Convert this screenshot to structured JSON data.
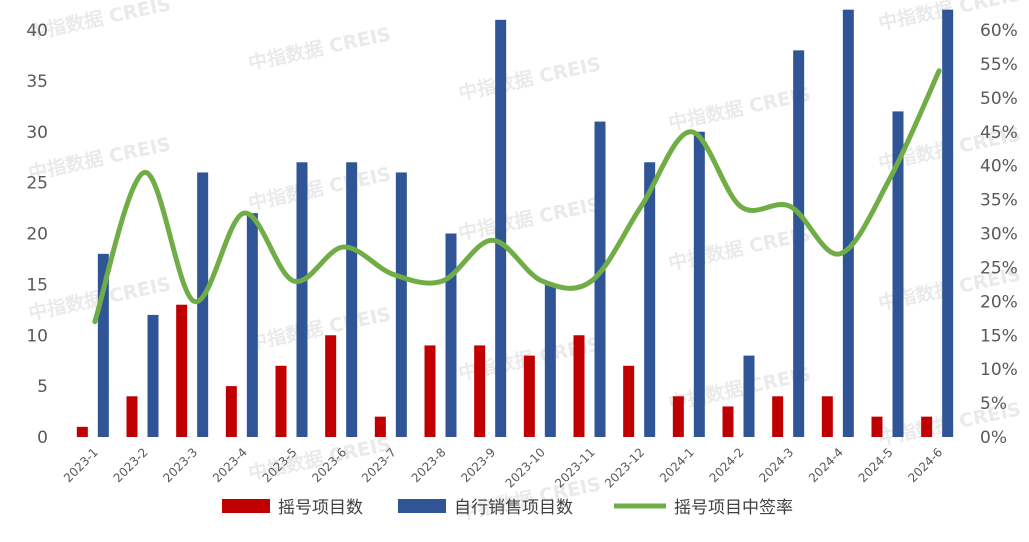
{
  "watermark": "中指数据 CREIS",
  "chart_data": {
    "type": "bar",
    "categories": [
      "2023-1",
      "2023-2",
      "2023-3",
      "2023-4",
      "2023-5",
      "2023-6",
      "2023-7",
      "2023-8",
      "2023-9",
      "2023-10",
      "2023-11",
      "2023-12",
      "2024-1",
      "2024-2",
      "2024-3",
      "2024-4",
      "2024-5",
      "2024-6"
    ],
    "series": [
      {
        "name": "摇号项目数",
        "type": "bar",
        "axis": "left",
        "color": "#c00000",
        "values": [
          1,
          4,
          13,
          5,
          7,
          10,
          2,
          9,
          9,
          8,
          10,
          7,
          4,
          3,
          4,
          4,
          2,
          2
        ]
      },
      {
        "name": "自行销售项目数",
        "type": "bar",
        "axis": "left",
        "color": "#2f5597",
        "values": [
          18,
          12,
          26,
          22,
          27,
          27,
          26,
          20,
          41,
          15,
          31,
          27,
          30,
          8,
          38,
          42,
          32,
          42
        ]
      },
      {
        "name": "摇号项目中签率",
        "type": "line",
        "axis": "right",
        "color": "#70ad47",
        "values": [
          17,
          39,
          20,
          33,
          23,
          28,
          24,
          23,
          29,
          23,
          23,
          34,
          45,
          34,
          34,
          27,
          38,
          54
        ]
      }
    ],
    "left_axis": {
      "min": 0,
      "max": 40,
      "step": 5,
      "tick_labels": [
        "0",
        "5",
        "10",
        "15",
        "20",
        "25",
        "30",
        "35",
        "40"
      ]
    },
    "right_axis": {
      "min": 0,
      "max": 60,
      "step": 5,
      "tick_labels": [
        "0%",
        "5%",
        "10%",
        "15%",
        "20%",
        "25%",
        "30%",
        "35%",
        "40%",
        "45%",
        "50%",
        "55%",
        "60%"
      ]
    },
    "title": "",
    "grid": false,
    "legend_position": "bottom"
  }
}
